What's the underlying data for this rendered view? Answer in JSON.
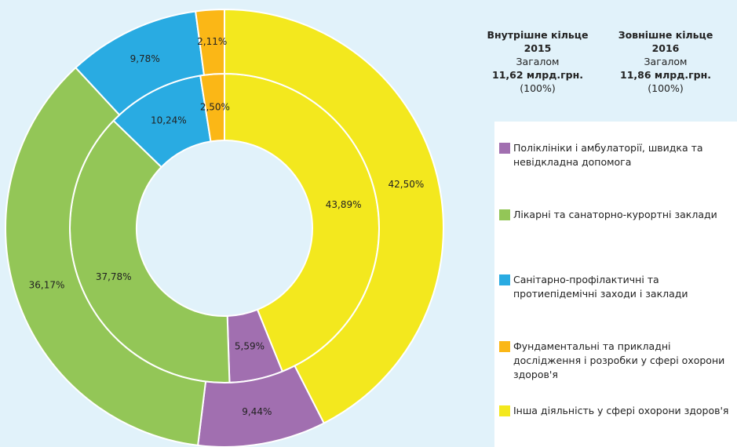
{
  "chart_data": {
    "type": "donut",
    "categories": [
      "Поліклініки і амбулаторії, швидка та невідкладна допомога",
      "Лікарні та санаторно-курортні заклади",
      "Санітарно-профілактичні та протиепідемічні заходи і заклади",
      "Фундаментальні та прикладні дослідження і розробки у сфері охорони здоров'я",
      "Інша діяльність у сфері охорони здоров'я"
    ],
    "colors": [
      "#a16fb0",
      "#93c657",
      "#29abe2",
      "#fbb716",
      "#f3e81e"
    ],
    "series": [
      {
        "name": "Внутрішне кільце",
        "year": "2015",
        "total_caption": "Загалом",
        "total": "11,62 млрд.грн.",
        "total_share": "(100%)",
        "values": [
          5.59,
          37.78,
          10.24,
          2.5,
          43.89
        ],
        "value_labels": [
          "5,59%",
          "37,78%",
          "10,24%",
          "2,50%",
          "43,89%"
        ]
      },
      {
        "name": "Зовнішне кільце",
        "year": "2016",
        "total_caption": "Загалом",
        "total": "11,86 млрд.грн.",
        "total_share": "(100%)",
        "values": [
          9.44,
          36.17,
          9.78,
          2.11,
          42.5
        ],
        "value_labels": [
          "9,44%",
          "36,17%",
          "9,78%",
          "2,11%",
          "42,50%"
        ]
      }
    ]
  }
}
